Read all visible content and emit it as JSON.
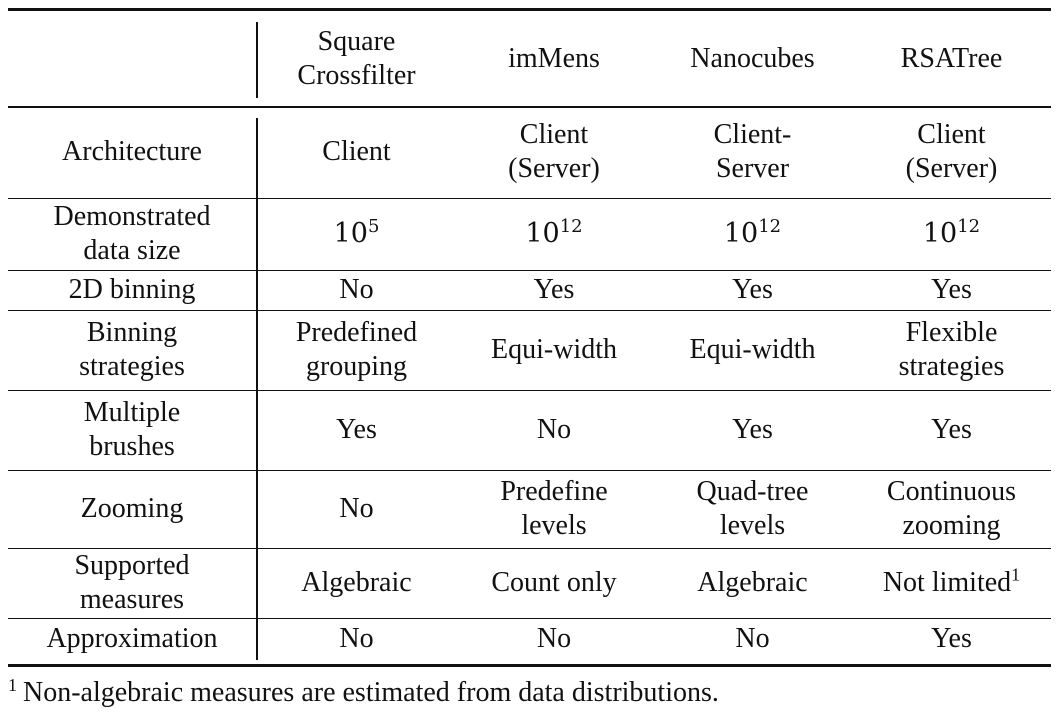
{
  "columns": [
    {
      "line1": "Square",
      "line2": "Crossfilter"
    },
    {
      "line1": "imMens",
      "line2": ""
    },
    {
      "line1": "Nanocubes",
      "line2": ""
    },
    {
      "line1": "RSATree",
      "line2": ""
    }
  ],
  "rows": [
    {
      "label": [
        "Architecture"
      ],
      "cells": [
        [
          "Client"
        ],
        [
          "Client",
          "(Server)"
        ],
        [
          "Client-",
          "Server"
        ],
        [
          "Client",
          "(Server)"
        ]
      ]
    },
    {
      "label": [
        "Demonstrated",
        "data size"
      ],
      "cells_sci": [
        {
          "base": "10",
          "exp": "5"
        },
        {
          "base": "10",
          "exp": "12"
        },
        {
          "base": "10",
          "exp": "12"
        },
        {
          "base": "10",
          "exp": "12"
        }
      ]
    },
    {
      "label": [
        "2D binning"
      ],
      "cells": [
        [
          "No"
        ],
        [
          "Yes"
        ],
        [
          "Yes"
        ],
        [
          "Yes"
        ]
      ]
    },
    {
      "label": [
        "Binning",
        "strategies"
      ],
      "cells": [
        [
          "Predefined",
          "grouping"
        ],
        [
          "Equi-width"
        ],
        [
          "Equi-width"
        ],
        [
          "Flexible",
          "strategies"
        ]
      ]
    },
    {
      "label": [
        "Multiple",
        "brushes"
      ],
      "cells": [
        [
          "Yes"
        ],
        [
          "No"
        ],
        [
          "Yes"
        ],
        [
          "Yes"
        ]
      ]
    },
    {
      "label": [
        "Zooming"
      ],
      "cells": [
        [
          "No"
        ],
        [
          "Predefine",
          "levels"
        ],
        [
          "Quad-tree",
          "levels"
        ],
        [
          "Continuous",
          "zooming"
        ]
      ]
    },
    {
      "label": [
        "Supported",
        "measures"
      ],
      "cells": [
        [
          "Algebraic"
        ],
        [
          "Count only"
        ],
        [
          "Algebraic"
        ],
        [
          "Not limited"
        ]
      ],
      "last_cell_sup": "1"
    },
    {
      "label": [
        "Approximation"
      ],
      "cells": [
        [
          "No"
        ],
        [
          "No"
        ],
        [
          "No"
        ],
        [
          "Yes"
        ]
      ]
    }
  ],
  "footnote": {
    "marker": "1",
    "text": "Non-algebraic measures are estimated from data distributions."
  }
}
